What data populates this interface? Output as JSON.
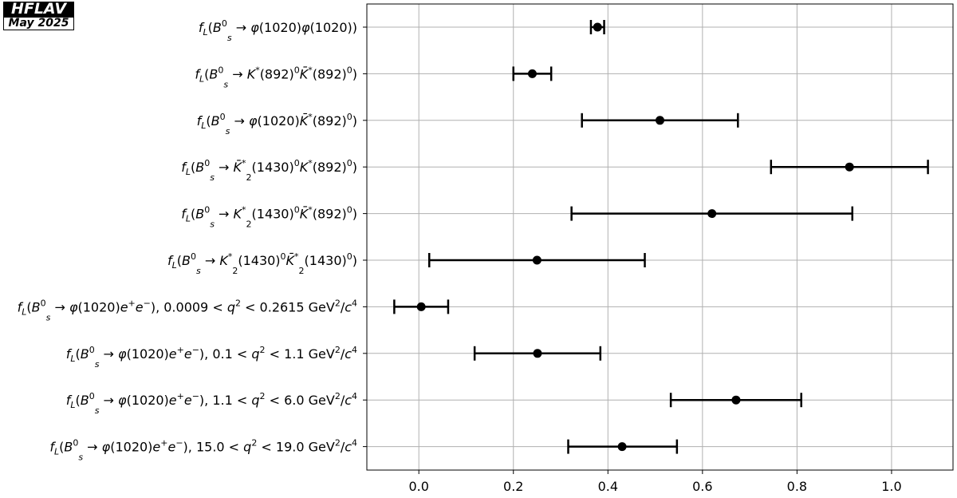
{
  "badge": {
    "top": "HFLAV",
    "bottom": "May 2025"
  },
  "chart_data": {
    "type": "scatter",
    "orientation": "horizontal-errorbar",
    "xlim": [
      -0.11,
      1.13
    ],
    "xticks": [
      0.0,
      0.2,
      0.4,
      0.6,
      0.8,
      1.0
    ],
    "xtick_labels": [
      "0.0",
      "0.2",
      "0.4",
      "0.6",
      "0.8",
      "1.0"
    ],
    "grid": true,
    "marker_color": "#000000",
    "grid_color": "#b0b0b0",
    "points": [
      {
        "label": "f_L(B_s^0 → φ(1020)φ(1020))",
        "value": 0.378,
        "low": 0.364,
        "high": 0.392
      },
      {
        "label": "f_L(B_s^0 → K*(892)^0 K̄*(892)^0)",
        "value": 0.24,
        "low": 0.2,
        "high": 0.28
      },
      {
        "label": "f_L(B_s^0 → φ(1020) K̄*(892)^0)",
        "value": 0.51,
        "low": 0.345,
        "high": 0.675
      },
      {
        "label": "f_L(B_s^0 → K̄_2*(1430)^0 K*(892)^0)",
        "value": 0.911,
        "low": 0.745,
        "high": 1.077
      },
      {
        "label": "f_L(B_s^0 → K_2*(1430)^0 K̄*(892)^0)",
        "value": 0.62,
        "low": 0.323,
        "high": 0.917
      },
      {
        "label": "f_L(B_s^0 → K_2*(1430)^0 K̄_2*(1430)^0)",
        "value": 0.25,
        "low": 0.022,
        "high": 0.478
      },
      {
        "label": "f_L(B_s^0 → φ(1020)e+e−), 0.0009 < q² < 0.2615 GeV²/c⁴",
        "value": 0.005,
        "low": -0.052,
        "high": 0.062
      },
      {
        "label": "f_L(B_s^0 → φ(1020)e+e−), 0.1 < q² < 1.1 GeV²/c⁴",
        "value": 0.251,
        "low": 0.118,
        "high": 0.384
      },
      {
        "label": "f_L(B_s^0 → φ(1020)e+e−), 1.1 < q² < 6.0 GeV²/c⁴",
        "value": 0.671,
        "low": 0.533,
        "high": 0.809
      },
      {
        "label": "f_L(B_s^0 → φ(1020)e+e−), 15.0 < q² < 19.0 GeV²/c⁴",
        "value": 0.43,
        "low": 0.316,
        "high": 0.546
      }
    ]
  }
}
